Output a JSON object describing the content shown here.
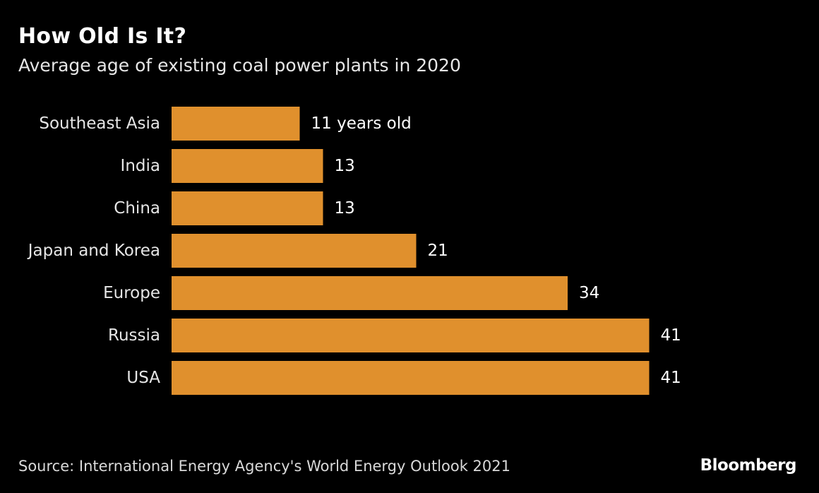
{
  "header": {
    "title": "How Old Is It?",
    "subtitle": "Average age of existing coal power plants in 2020"
  },
  "chart_data": {
    "type": "bar",
    "orientation": "horizontal",
    "categories": [
      "Southeast Asia",
      "India",
      "China",
      "Japan and Korea",
      "Europe",
      "Russia",
      "USA"
    ],
    "values": [
      11,
      13,
      13,
      21,
      34,
      41,
      41
    ],
    "data_labels": [
      "11 years old",
      "13",
      "13",
      "21",
      "34",
      "41",
      "41"
    ],
    "title": "How Old Is It?",
    "subtitle": "Average age of existing coal power plants in 2020",
    "xlabel": "",
    "ylabel": "",
    "xlim": [
      0,
      42
    ],
    "grid": false,
    "bar_color": "#E0902D",
    "background": "#000000"
  },
  "footer": {
    "source": "Source: International Energy Agency's World Energy Outlook 2021",
    "brand": "Bloomberg"
  }
}
